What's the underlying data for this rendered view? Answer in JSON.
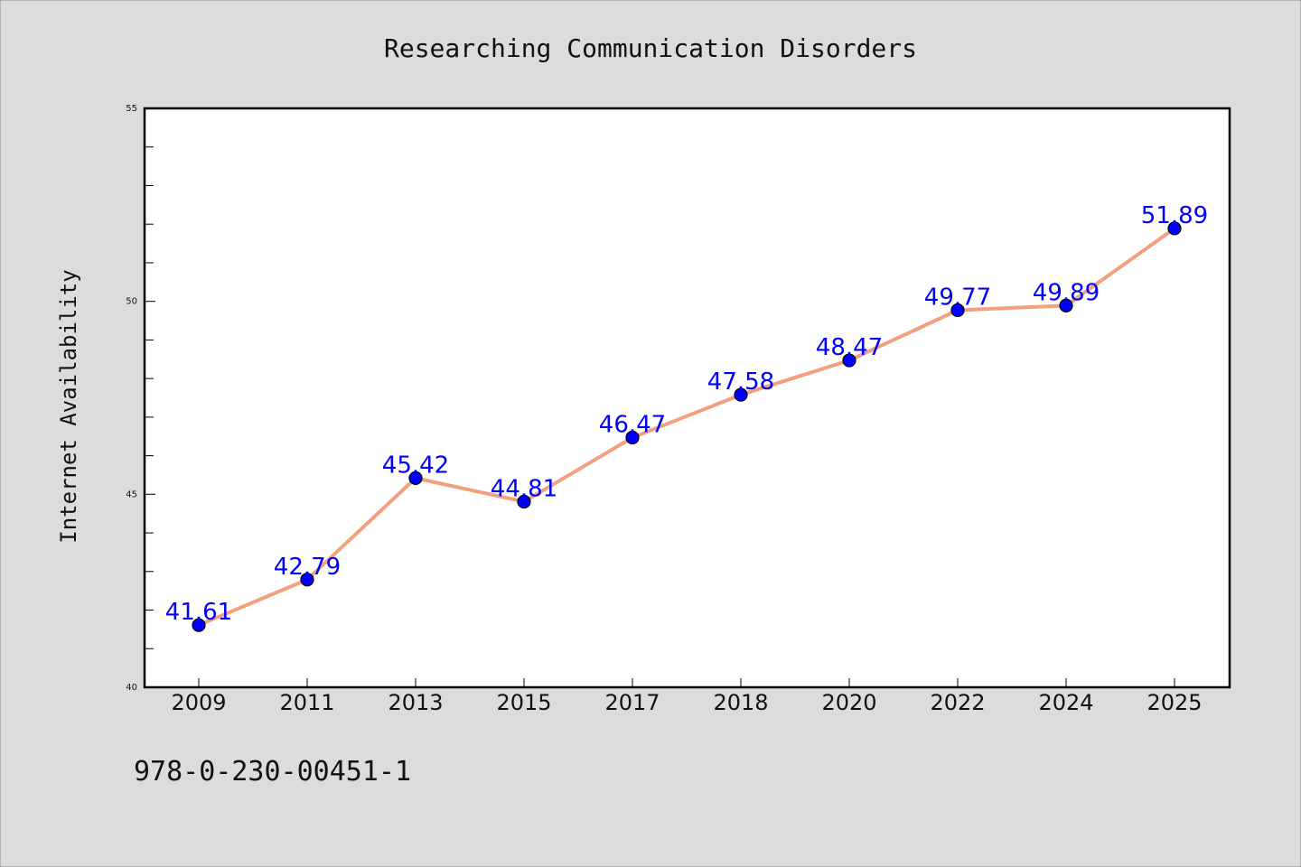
{
  "chart_data": {
    "type": "line",
    "title": "Researching Communication Disorders",
    "xlabel": "",
    "ylabel": "Internet Availability",
    "categories": [
      "2009",
      "2011",
      "2013",
      "2015",
      "2017",
      "2018",
      "2020",
      "2022",
      "2024",
      "2025"
    ],
    "series": [
      {
        "values": [
          41.61,
          42.79,
          45.42,
          44.81,
          46.47,
          47.58,
          48.47,
          49.77,
          49.89,
          51.89
        ]
      }
    ],
    "data_labels": [
      "41.61",
      "42.79",
      "45.42",
      "44.81",
      "46.47",
      "47.58",
      "48.47",
      "49.77",
      "49.89",
      "51.89"
    ],
    "ylim": [
      40,
      55
    ],
    "yticks": [
      40,
      45,
      50,
      55
    ],
    "grid": false,
    "legend": "none",
    "line_color": "#f4a07e",
    "marker_color": "#0000ff",
    "label_color": "#0000ff"
  },
  "annotation": "978-0-230-00451-1"
}
